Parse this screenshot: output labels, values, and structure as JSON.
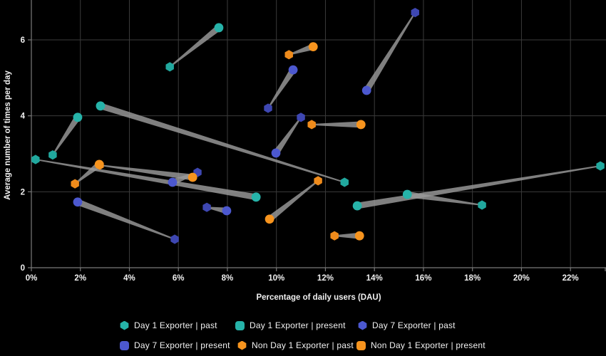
{
  "chart_data": {
    "type": "scatter",
    "variant": "comet-pairs (past to present)",
    "title": "",
    "xlabel": "Percentage of daily users (DAU)",
    "ylabel": "Average number of times per day",
    "xlim": [
      0,
      23.45
    ],
    "ylim": [
      0,
      7.05
    ],
    "x_tick_values": [
      0,
      2,
      4,
      6,
      8,
      10,
      12,
      14,
      16,
      18,
      20,
      22
    ],
    "x_tick_labels": [
      "0%",
      "2%",
      "4%",
      "6%",
      "8%",
      "10%",
      "12%",
      "14%",
      "16%",
      "18%",
      "20%",
      "22%"
    ],
    "y_tick_values": [
      0,
      2,
      4,
      6
    ],
    "y_tick_labels": [
      "0",
      "2",
      "4",
      "6"
    ],
    "grid": true,
    "background_color": "#000000",
    "grid_color": "#3b3b3b",
    "axis_color": "#7a7a7a",
    "text_color": "#f0f0f0",
    "band_color": "#9b9b9b",
    "series": [
      {
        "name": "Day 1 Exporter",
        "color": "#26b3a9",
        "past_color": "#21a89e",
        "pairs": [
          {
            "past": [
              0.17,
              2.85
            ],
            "present": [
              9.17,
              1.86
            ]
          },
          {
            "past": [
              0.87,
              2.97
            ],
            "present": [
              1.89,
              3.96
            ]
          },
          {
            "past": [
              12.78,
              2.25
            ],
            "present": [
              2.82,
              4.26
            ]
          },
          {
            "past": [
              5.65,
              5.29
            ],
            "present": [
              7.65,
              6.32
            ]
          },
          {
            "past": [
              23.22,
              2.68
            ],
            "present": [
              13.3,
              1.63
            ]
          },
          {
            "past": [
              18.39,
              1.65
            ],
            "present": [
              15.34,
              1.93
            ]
          }
        ]
      },
      {
        "name": "Day 7 Exporter",
        "color": "#4c58cf",
        "past_color": "#3e47b2",
        "pairs": [
          {
            "past": [
              9.66,
              4.2
            ],
            "present": [
              10.68,
              5.21
            ]
          },
          {
            "past": [
              11.0,
              3.96
            ],
            "present": [
              9.98,
              3.02
            ]
          },
          {
            "past": [
              15.66,
              6.72
            ],
            "present": [
              13.68,
              4.67
            ]
          },
          {
            "past": [
              5.85,
              0.75
            ],
            "present": [
              1.89,
              1.73
            ]
          },
          {
            "past": [
              6.78,
              2.51
            ],
            "present": [
              5.76,
              2.25
            ]
          },
          {
            "past": [
              7.16,
              1.59
            ],
            "present": [
              7.97,
              1.5
            ]
          }
        ]
      },
      {
        "name": "Non Day 1 Exporter",
        "color": "#f7941e",
        "past_color": "#ef8b1b",
        "pairs": [
          {
            "past": [
              10.51,
              5.61
            ],
            "present": [
              11.5,
              5.82
            ]
          },
          {
            "past": [
              11.44,
              3.77
            ],
            "present": [
              13.45,
              3.77
            ]
          },
          {
            "past": [
              11.7,
              2.29
            ],
            "present": [
              9.72,
              1.28
            ]
          },
          {
            "past": [
              1.78,
              2.21
            ],
            "present": [
              2.77,
              2.72
            ]
          },
          {
            "past": [
              2.79,
              2.7
            ],
            "present": [
              6.58,
              2.38
            ]
          },
          {
            "past": [
              12.37,
              0.84
            ],
            "present": [
              13.39,
              0.84
            ]
          }
        ]
      }
    ],
    "legend": [
      {
        "label": "Day 1 Exporter | past",
        "color": "#26b3a9",
        "shape": "hexagon"
      },
      {
        "label": "Day 1 Exporter | present",
        "color": "#26b3a9",
        "shape": "rounded-square"
      },
      {
        "label": "Day 7 Exporter | past",
        "color": "#4c58cf",
        "shape": "hexagon"
      },
      {
        "label": "Day 7 Exporter | present",
        "color": "#4c58cf",
        "shape": "rounded-square"
      },
      {
        "label": "Non Day 1 Exporter | past",
        "color": "#f7941e",
        "shape": "hexagon"
      },
      {
        "label": "Non Day 1 Exporter | present",
        "color": "#f7941e",
        "shape": "rounded-square"
      }
    ],
    "legend_position": "bottom"
  }
}
